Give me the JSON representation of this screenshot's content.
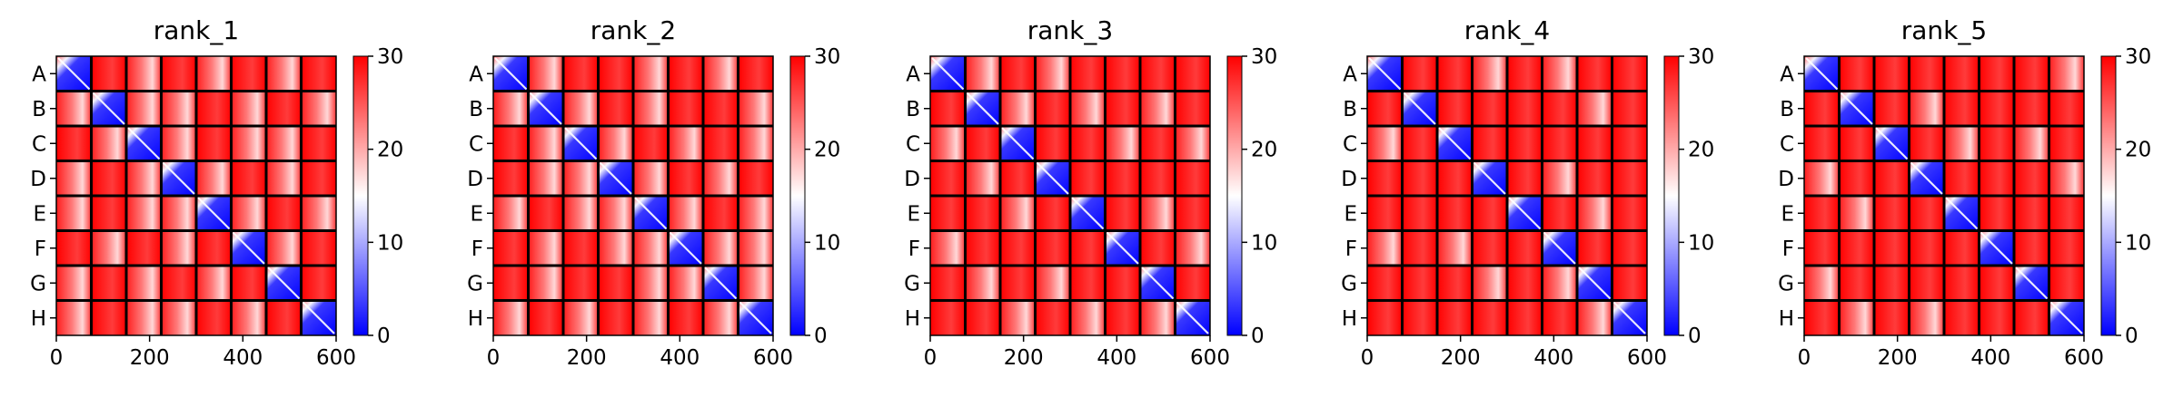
{
  "chart_data": [
    {
      "type": "heatmap",
      "title": "rank_1",
      "row_labels": [
        "A",
        "B",
        "C",
        "D",
        "E",
        "F",
        "G",
        "H"
      ],
      "x_ticks": [
        "0",
        "200",
        "400",
        "600"
      ],
      "xlim": [
        0,
        600
      ],
      "grid": "8x8 blocks",
      "colorbar": {
        "ticks": [
          "0",
          "10",
          "20",
          "30"
        ],
        "range": [
          0,
          30
        ],
        "colormap": "bwr"
      }
    },
    {
      "type": "heatmap",
      "title": "rank_2",
      "row_labels": [
        "A",
        "B",
        "C",
        "D",
        "E",
        "F",
        "G",
        "H"
      ],
      "x_ticks": [
        "0",
        "200",
        "400",
        "600"
      ],
      "xlim": [
        0,
        600
      ],
      "grid": "8x8 blocks",
      "colorbar": {
        "ticks": [
          "0",
          "10",
          "20",
          "30"
        ],
        "range": [
          0,
          30
        ],
        "colormap": "bwr"
      }
    },
    {
      "type": "heatmap",
      "title": "rank_3",
      "row_labels": [
        "A",
        "B",
        "C",
        "D",
        "E",
        "F",
        "G",
        "H"
      ],
      "x_ticks": [
        "0",
        "200",
        "400",
        "600"
      ],
      "xlim": [
        0,
        600
      ],
      "grid": "8x8 blocks",
      "colorbar": {
        "ticks": [
          "0",
          "10",
          "20",
          "30"
        ],
        "range": [
          0,
          30
        ],
        "colormap": "bwr"
      }
    },
    {
      "type": "heatmap",
      "title": "rank_4",
      "row_labels": [
        "A",
        "B",
        "C",
        "D",
        "E",
        "F",
        "G",
        "H"
      ],
      "x_ticks": [
        "0",
        "200",
        "400",
        "600"
      ],
      "xlim": [
        0,
        600
      ],
      "grid": "8x8 blocks",
      "colorbar": {
        "ticks": [
          "0",
          "10",
          "20",
          "30"
        ],
        "range": [
          0,
          30
        ],
        "colormap": "bwr"
      }
    },
    {
      "type": "heatmap",
      "title": "rank_5",
      "row_labels": [
        "A",
        "B",
        "C",
        "D",
        "E",
        "F",
        "G",
        "H"
      ],
      "x_ticks": [
        "0",
        "200",
        "400",
        "600"
      ],
      "xlim": [
        0,
        600
      ],
      "grid": "8x8 blocks",
      "colorbar": {
        "ticks": [
          "0",
          "10",
          "20",
          "30"
        ],
        "range": [
          0,
          30
        ],
        "colormap": "bwr"
      }
    }
  ],
  "colors": {
    "low": "#0000ff",
    "mid": "#ffffff",
    "high": "#ff0000",
    "grid_line": "#000000"
  }
}
